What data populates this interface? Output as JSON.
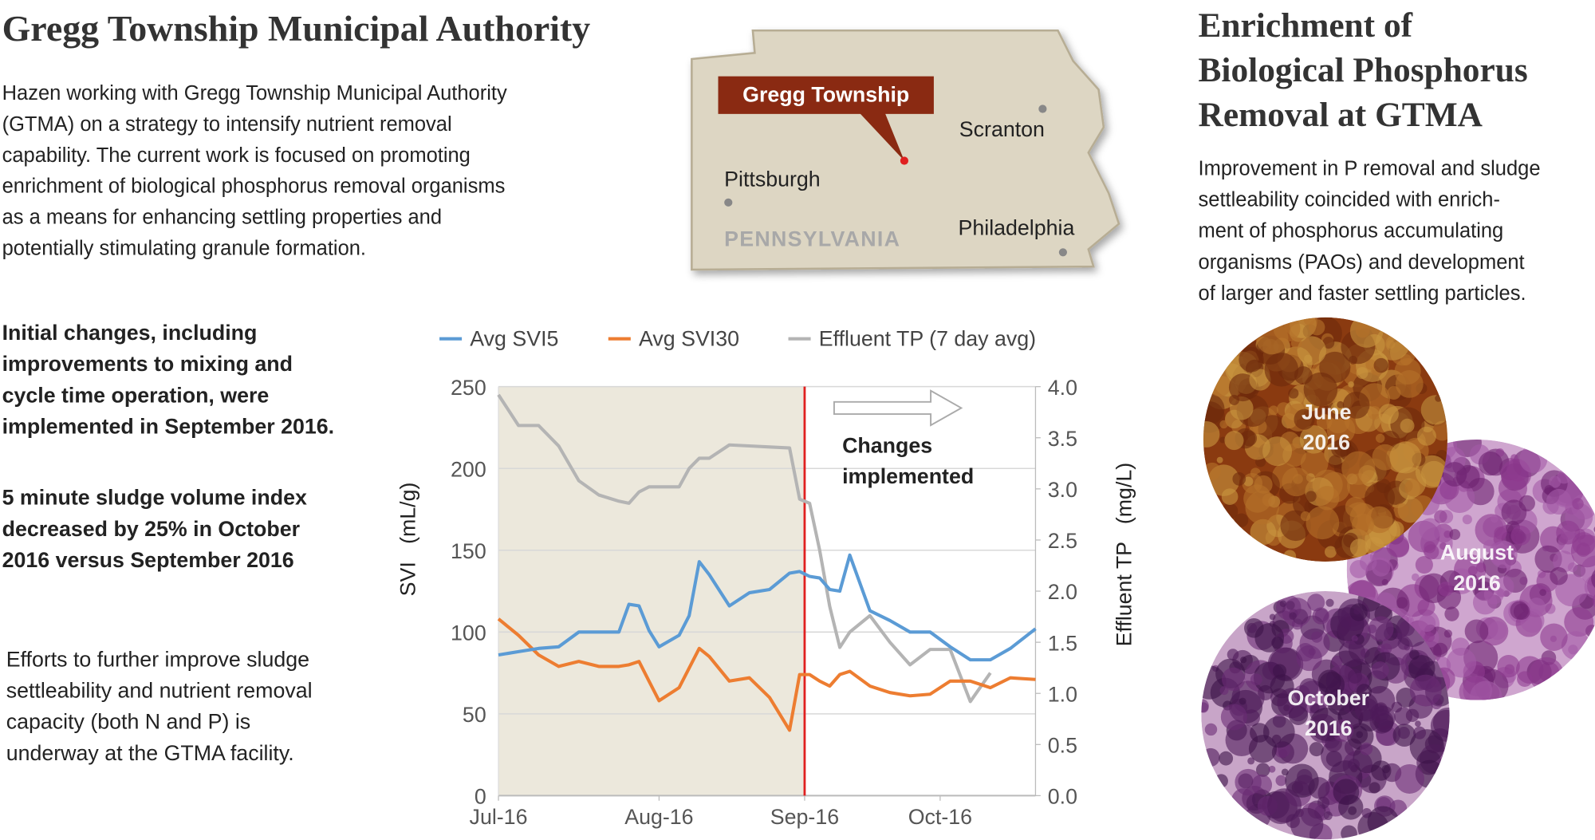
{
  "header": {
    "title": "Gregg Township Municipal Authority",
    "intro": [
      "Hazen working with Gregg Township Municipal Authority",
      "(GTMA) on a strategy to intensify nutrient removal",
      "capability. The current work is focused on promoting",
      "enrichment of biological phosphorus removal organisms",
      "as a means for enhancing settling properties and",
      "potentially stimulating granule formation."
    ]
  },
  "map": {
    "callout": "Gregg Township",
    "cities": [
      "Scranton",
      "Pittsburgh",
      "Philadelphia"
    ],
    "state": "PENNSYLVANIA"
  },
  "notes": [
    [
      "Initial changes, including",
      "improvements to mixing and",
      "cycle time operation, were",
      "implemented in September 2016."
    ],
    [
      "5 minute sludge volume index",
      "decreased by 25% in October",
      "2016 versus September 2016"
    ],
    [
      "Efforts to further improve sludge",
      "settleability and nutrient removal",
      "capacity (both N and P) is",
      "underway at the GTMA facility."
    ]
  ],
  "chart_data": {
    "type": "line",
    "x": [
      0,
      4,
      8,
      12,
      16,
      20,
      24,
      26,
      28,
      30,
      32,
      36,
      38,
      40,
      42,
      46,
      50,
      54,
      58,
      60,
      62,
      64,
      66,
      68,
      70,
      74,
      78,
      82,
      86,
      90,
      94,
      98,
      102,
      107
    ],
    "xlim": [
      0,
      107
    ],
    "xticks": [
      {
        "value": 0,
        "label": "Jul-16"
      },
      {
        "value": 32,
        "label": "Aug-16"
      },
      {
        "value": 61,
        "label": "Sep-16"
      },
      {
        "value": 88,
        "label": "Oct-16"
      }
    ],
    "ylim": [
      0,
      250
    ],
    "yticks": [
      0,
      50,
      100,
      150,
      200,
      250
    ],
    "y2lim": [
      0,
      4
    ],
    "y2ticks": [
      {
        "value": 0,
        "label": "0.0"
      },
      0.5,
      {
        "value": 1,
        "label": "1.0"
      },
      1.5,
      {
        "value": 2,
        "label": "2.0"
      },
      2.5,
      {
        "value": 3,
        "label": "3.0"
      },
      3.5,
      {
        "value": 4,
        "label": "4.0"
      }
    ],
    "ylabel": "SVI   (mL/g)",
    "y2label": "Effluent TP   (mg/L)",
    "grid": true,
    "annotation": [
      "Changes",
      "implemented"
    ],
    "event_x": 61,
    "series": [
      {
        "name": "Avg SVI5",
        "color": "#5b9bd5",
        "values": [
          86,
          88,
          90,
          91,
          100,
          100,
          100,
          117,
          116,
          101,
          91,
          98,
          110,
          143,
          135,
          116,
          124,
          126,
          136,
          137,
          134,
          133,
          126,
          125,
          147,
          113,
          107,
          100,
          100,
          91,
          83,
          83,
          90,
          102
        ]
      },
      {
        "name": "Avg SVI30",
        "color": "#ed7d31",
        "values": [
          108,
          98,
          86,
          79,
          82,
          79,
          79,
          80,
          82,
          70,
          58,
          66,
          78,
          90,
          85,
          70,
          72,
          60,
          40,
          74,
          74,
          70,
          67,
          74,
          76,
          67,
          63,
          61,
          62,
          70,
          70,
          66,
          72,
          71
        ]
      },
      {
        "name": "Effluent TP (7 day avg)",
        "color": "#b4b4b4",
        "axis": "y2",
        "values": [
          3.92,
          3.62,
          3.62,
          3.42,
          3.08,
          2.94,
          2.88,
          2.86,
          2.97,
          3.02,
          3.02,
          3.02,
          3.2,
          3.3,
          3.3,
          3.43,
          3.42,
          3.41,
          3.4,
          2.9,
          2.86,
          2.4,
          1.85,
          1.45,
          1.6,
          1.76,
          1.5,
          1.28,
          1.43,
          1.43,
          0.92,
          1.2,
          null,
          null
        ]
      }
    ]
  },
  "panel": {
    "title": [
      "Enrichment of",
      "Biological Phosphorus",
      "Removal at GTMA"
    ],
    "text": [
      "Improvement in P removal and sludge",
      "settleability coincided with enrich-",
      "ment of phosphorus accumulating",
      "organisms (PAOs) and development",
      "of larger and faster settling particles."
    ],
    "samples": [
      [
        "June",
        "2016"
      ],
      [
        "August",
        "2016"
      ],
      [
        "October",
        "2016"
      ]
    ]
  }
}
